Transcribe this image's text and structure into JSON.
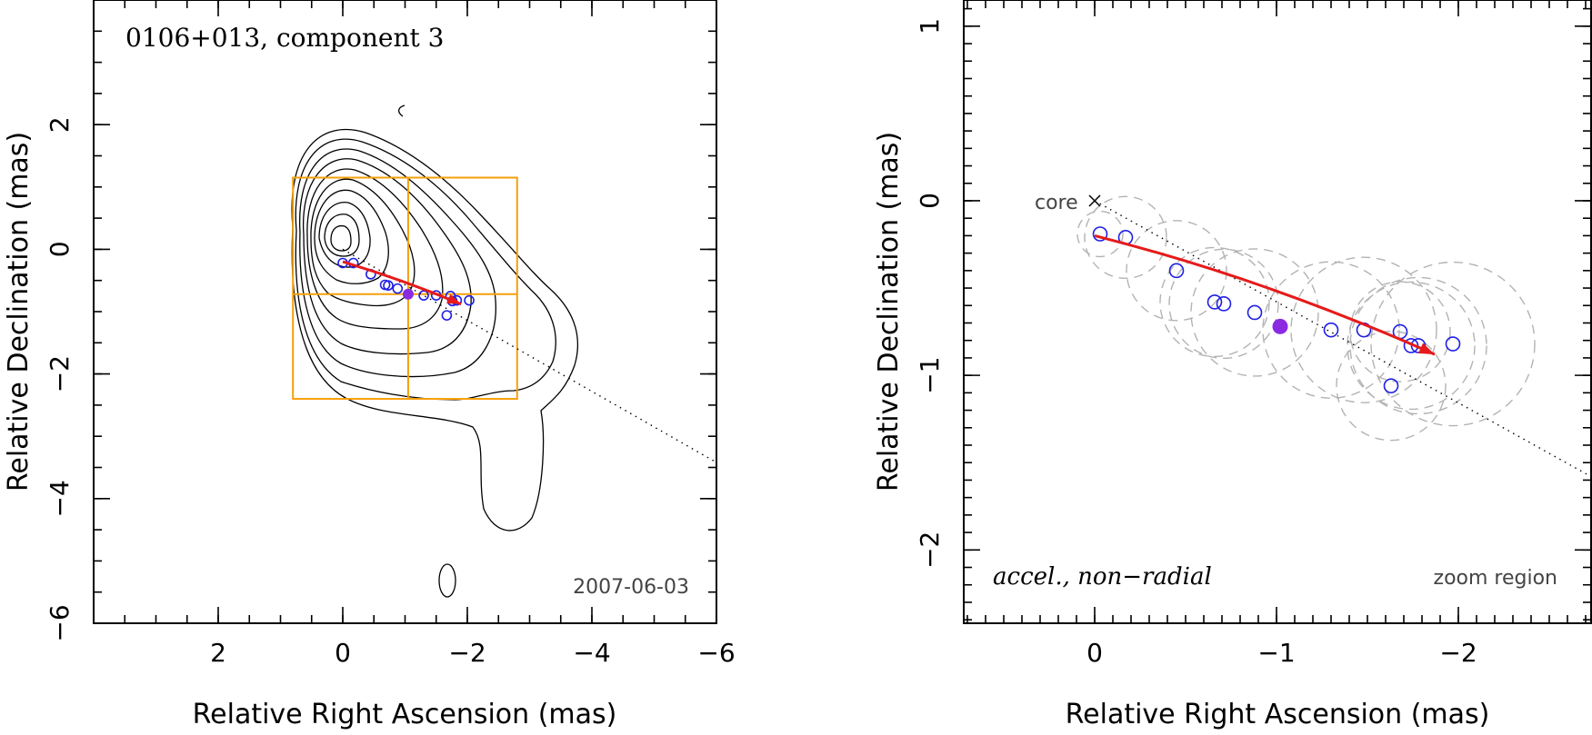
{
  "chart_data": [
    {
      "type": "contour",
      "title": "0106+013, component 3",
      "date": "2007-06-03",
      "xlabel": "Relative Right Ascension (mas)",
      "ylabel": "Relative Declination (mas)",
      "xlim": [
        4,
        -6
      ],
      "ylim": [
        -6,
        4
      ],
      "xticks": [
        2,
        0,
        -2,
        -4,
        -6
      ],
      "xtick_labels": [
        "2",
        "0",
        "−2",
        "−4",
        "−6"
      ],
      "yticks": [
        2,
        0,
        -2,
        -4,
        -6
      ],
      "ytick_labels": [
        "2",
        "0",
        "−2",
        "−4",
        "−6"
      ],
      "zoom_region": {
        "x": [
          0.8,
          -2.8
        ],
        "y": [
          -2.4,
          1.15
        ],
        "cross": [
          -1.05,
          -0.72
        ]
      },
      "jet_axis": {
        "from": [
          0,
          0
        ],
        "to": [
          -6,
          -3.42
        ]
      },
      "trajectory": {
        "from": [
          0,
          -0.2
        ],
        "to": [
          -1.9,
          -0.88
        ],
        "color": "#e61a1a"
      },
      "component_positions": [
        {
          "ra": 0.0,
          "dec": -0.22
        },
        {
          "ra": -0.17,
          "dec": -0.22
        },
        {
          "ra": -0.45,
          "dec": -0.4
        },
        {
          "ra": -0.68,
          "dec": -0.57
        },
        {
          "ra": -0.73,
          "dec": -0.58
        },
        {
          "ra": -0.88,
          "dec": -0.63
        },
        {
          "ra": -1.3,
          "dec": -0.74
        },
        {
          "ra": -1.5,
          "dec": -0.74
        },
        {
          "ra": -1.73,
          "dec": -0.75
        },
        {
          "ra": -1.76,
          "dec": -0.83
        },
        {
          "ra": -1.83,
          "dec": -0.82
        },
        {
          "ra": -2.03,
          "dec": -0.82
        },
        {
          "ra": -1.67,
          "dec": -1.06
        }
      ],
      "highlighted_position": {
        "ra": -1.05,
        "dec": -0.72,
        "color": "#8a2be2"
      }
    },
    {
      "type": "scatter",
      "label_left": "accel., non−radial",
      "label_right": "zoom region",
      "core_label": "core",
      "xlabel": "Relative Right Ascension (mas)",
      "ylabel": "Relative Declination (mas)",
      "xlim": [
        0.72,
        -2.73
      ],
      "ylim": [
        -2.42,
        1.15
      ],
      "xticks": [
        0,
        -1,
        -2
      ],
      "xtick_labels": [
        "0",
        "−1",
        "−2"
      ],
      "yticks": [
        1,
        0,
        -1,
        -2
      ],
      "ytick_labels": [
        "1",
        "0",
        "−1",
        "−2"
      ],
      "jet_axis": {
        "from": [
          0,
          0
        ],
        "to": [
          -2.73,
          -1.58
        ]
      },
      "trajectory": {
        "from": [
          0,
          -0.2
        ],
        "to": [
          -1.87,
          -0.88
        ],
        "color": "#e61a1a"
      },
      "component_positions": [
        {
          "ra": -0.03,
          "dec": -0.19
        },
        {
          "ra": -0.17,
          "dec": -0.21
        },
        {
          "ra": -0.45,
          "dec": -0.4
        },
        {
          "ra": -0.66,
          "dec": -0.58
        },
        {
          "ra": -0.71,
          "dec": -0.59
        },
        {
          "ra": -0.88,
          "dec": -0.64
        },
        {
          "ra": -1.3,
          "dec": -0.74
        },
        {
          "ra": -1.48,
          "dec": -0.74
        },
        {
          "ra": -1.68,
          "dec": -0.75
        },
        {
          "ra": -1.74,
          "dec": -0.83
        },
        {
          "ra": -1.78,
          "dec": -0.83
        },
        {
          "ra": -1.97,
          "dec": -0.82
        },
        {
          "ra": -1.63,
          "dec": -1.06
        }
      ],
      "highlighted_position": {
        "ra": -1.02,
        "dec": -0.72,
        "color": "#8a2be2"
      },
      "component_sizes_mas": [
        0.25,
        0.45,
        0.55,
        0.6,
        0.6,
        0.7,
        0.75,
        0.8,
        0.55,
        0.7,
        0.75,
        0.9,
        0.6
      ]
    }
  ]
}
